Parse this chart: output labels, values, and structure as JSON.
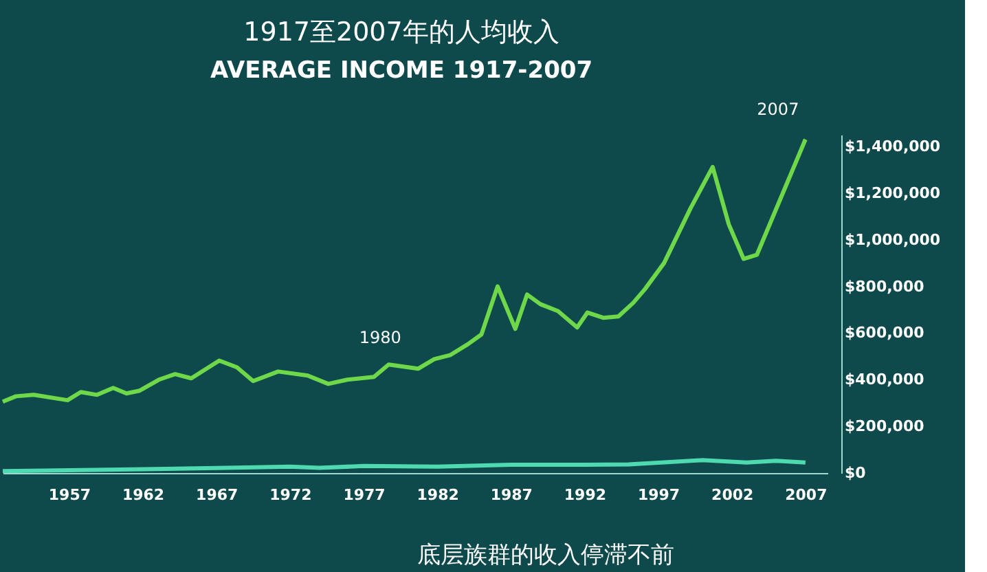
{
  "chart_data": {
    "type": "line",
    "title": "1917至2007年的人均收入",
    "subtitle": "AVERAGE INCOME 1917-2007",
    "xlim": [
      1952.5,
      2008.5
    ],
    "xticks": [
      1957,
      1962,
      1967,
      1972,
      1977,
      1982,
      1987,
      1992,
      1997,
      2002,
      2007
    ],
    "ylim": [
      0,
      1450000
    ],
    "yticks": [
      {
        "value": 0,
        "label": "$0"
      },
      {
        "value": 200000,
        "label": "$200,000"
      },
      {
        "value": 400000,
        "label": "$400,000"
      },
      {
        "value": 600000,
        "label": "$600,000"
      },
      {
        "value": 800000,
        "label": "$800,000"
      },
      {
        "value": 1000000,
        "label": "$1,000,000"
      },
      {
        "value": 1200000,
        "label": "$1,200,000"
      },
      {
        "value": 1400000,
        "label": "$1,400,000"
      }
    ],
    "grid": false,
    "legend": false,
    "marker": "none",
    "line_style": "solid",
    "series": [
      {
        "color": "#6ed84a",
        "x": [
          1952.5,
          1953.4,
          1954.6,
          1956.9,
          1957.8,
          1958.9,
          1960.0,
          1960.9,
          1961.8,
          1963.1,
          1964.2,
          1965.3,
          1967.2,
          1968.4,
          1969.5,
          1971.2,
          1973.2,
          1974.6,
          1975.9,
          1977.7,
          1978.7,
          1980.7,
          1981.8,
          1982.9,
          1984.1,
          1985.0,
          1986.1,
          1987.3,
          1988.1,
          1989.0,
          1990.2,
          1991.5,
          1992.2,
          1993.3,
          1994.3,
          1995.3,
          1996.1,
          1997.4,
          1999.2,
          2000.7,
          2001.8,
          2002.8,
          2003.7,
          2005.9,
          2007.0
        ],
        "values": [
          306000,
          329000,
          335000,
          312000,
          347000,
          335000,
          365000,
          341000,
          353000,
          400000,
          424000,
          406000,
          482000,
          453000,
          394000,
          435000,
          418000,
          382000,
          400000,
          412000,
          465000,
          447000,
          488000,
          506000,
          553000,
          594000,
          800000,
          618000,
          765000,
          724000,
          694000,
          624000,
          688000,
          665000,
          671000,
          729000,
          788000,
          900000,
          1135000,
          1312000,
          1065000,
          918000,
          935000,
          1265000,
          1430000
        ]
      },
      {
        "color": "#4fd9b0",
        "x": [
          1952.5,
          1957,
          1962,
          1967,
          1972,
          1974,
          1977,
          1982,
          1987,
          1992,
          1995,
          2000,
          2003,
          2005,
          2007
        ],
        "values": [
          8000,
          12000,
          16000,
          21000,
          27000,
          22000,
          30000,
          27000,
          35000,
          35000,
          37000,
          55000,
          45000,
          52000,
          45000
        ]
      }
    ],
    "annotations": [
      {
        "text": "1980",
        "x": 1980,
        "y": 450000
      },
      {
        "text": "2007",
        "x": 2007,
        "y": 1430000
      },
      "底层族群的收入停滞不前"
    ]
  }
}
